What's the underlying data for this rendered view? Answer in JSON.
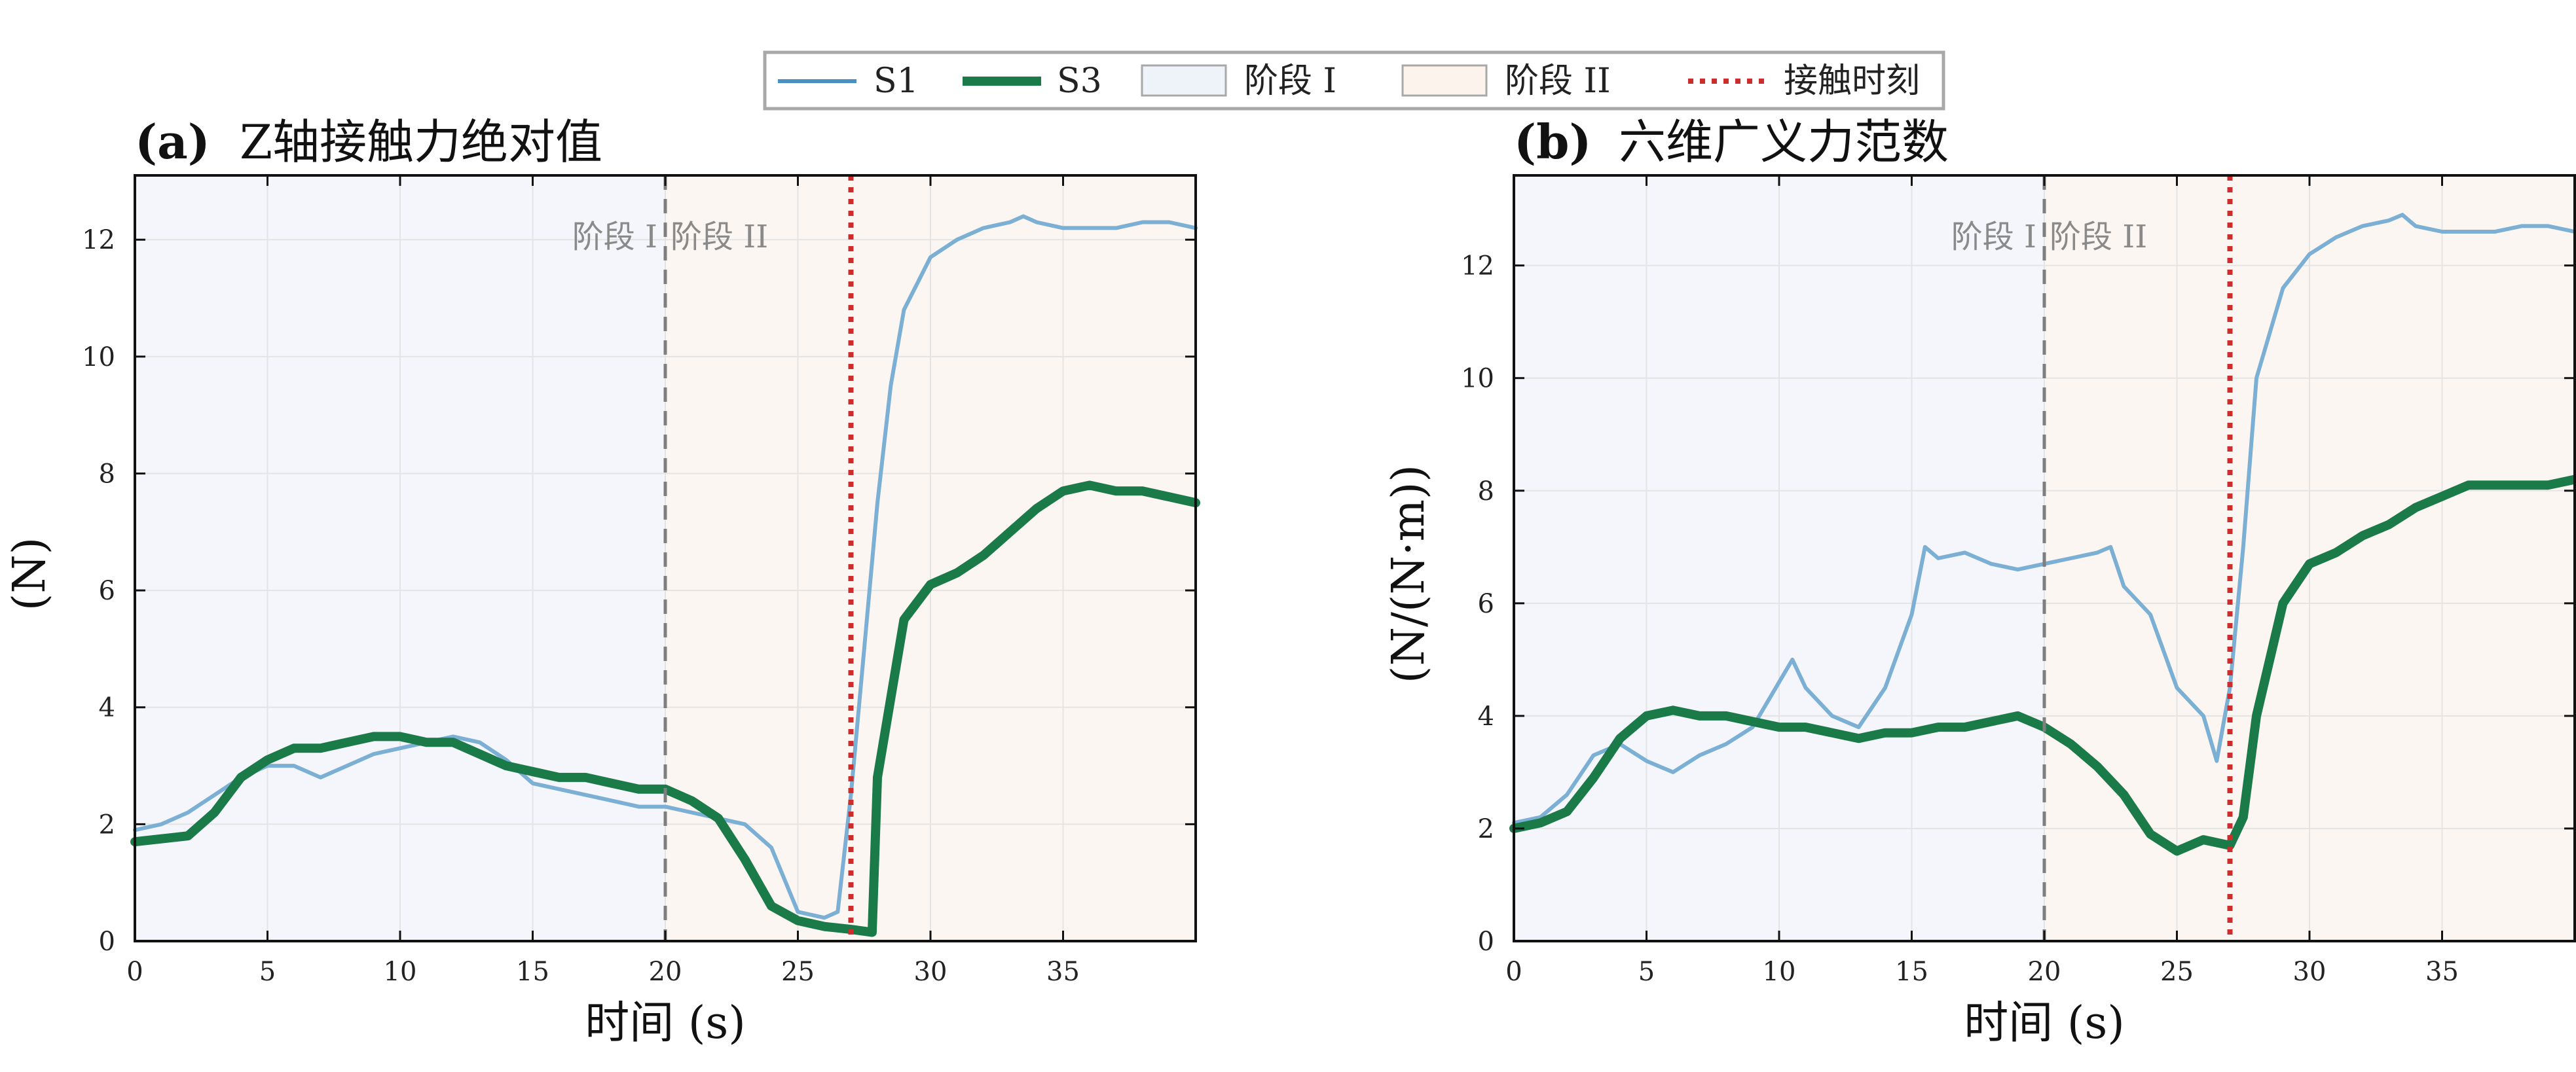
{
  "legend": {
    "items": [
      {
        "label": "S1",
        "kind": "line",
        "color": "#4a90c0"
      },
      {
        "label": "S3",
        "kind": "line-thick",
        "color": "#1a7a48"
      },
      {
        "label": "阶段 I",
        "kind": "patch",
        "color": "#eef2f9"
      },
      {
        "label": "阶段 II",
        "kind": "patch",
        "color": "#fbf3ec"
      },
      {
        "label": "接触时刻",
        "kind": "dotted",
        "color": "#cc2e2e"
      }
    ]
  },
  "stage_labels": {
    "stage1": "阶段 I",
    "stage2": "阶段 II"
  },
  "colors": {
    "s1": "#7bafd4",
    "s3": "#1a7a48",
    "stage1_bg": "#f4f6fb",
    "stage2_bg": "#fcf6f2",
    "contact": "#cc2e2e",
    "stage_line": "#7f7f7f"
  },
  "chart_data": [
    {
      "type": "line",
      "panel": "(a)",
      "title": "Z轴接触力绝对值",
      "xlabel": "时间  (s)",
      "ylabel": "(N)",
      "xlim": [
        0,
        40
      ],
      "ylim": [
        0,
        13.1
      ],
      "xticks": [
        0,
        5,
        10,
        15,
        20,
        25,
        30,
        35
      ],
      "yticks": [
        0,
        2,
        4,
        6,
        8,
        10,
        12
      ],
      "stage_boundary": 20,
      "contact_time": 27,
      "series": [
        {
          "name": "S1",
          "x": [
            0,
            1,
            2,
            3,
            4,
            5,
            6,
            7,
            8,
            9,
            10,
            11,
            12,
            13,
            14,
            15,
            16,
            17,
            18,
            19,
            20,
            21,
            22,
            23,
            24,
            25,
            26,
            26.5,
            27,
            27.5,
            28,
            28.5,
            29,
            30,
            31,
            32,
            33,
            33.5,
            34,
            35,
            36,
            37,
            38,
            39,
            40
          ],
          "y": [
            1.9,
            2.0,
            2.2,
            2.5,
            2.8,
            3.0,
            3.0,
            2.8,
            3.0,
            3.2,
            3.3,
            3.4,
            3.5,
            3.4,
            3.1,
            2.7,
            2.6,
            2.5,
            2.4,
            2.3,
            2.3,
            2.2,
            2.1,
            2.0,
            1.6,
            0.5,
            0.4,
            0.5,
            2.5,
            5.0,
            7.5,
            9.5,
            10.8,
            11.7,
            12.0,
            12.2,
            12.3,
            12.4,
            12.3,
            12.2,
            12.2,
            12.2,
            12.3,
            12.3,
            12.2
          ]
        },
        {
          "name": "S3",
          "x": [
            0,
            1,
            2,
            3,
            4,
            5,
            6,
            7,
            8,
            9,
            10,
            11,
            12,
            13,
            14,
            15,
            16,
            17,
            18,
            19,
            20,
            21,
            22,
            23,
            24,
            25,
            26,
            27,
            27.8,
            28,
            29,
            30,
            31,
            32,
            33,
            34,
            35,
            36,
            37,
            38,
            39,
            40
          ],
          "y": [
            1.7,
            1.75,
            1.8,
            2.2,
            2.8,
            3.1,
            3.3,
            3.3,
            3.4,
            3.5,
            3.5,
            3.4,
            3.4,
            3.2,
            3.0,
            2.9,
            2.8,
            2.8,
            2.7,
            2.6,
            2.6,
            2.4,
            2.1,
            1.4,
            0.6,
            0.35,
            0.25,
            0.2,
            0.15,
            2.8,
            5.5,
            6.1,
            6.3,
            6.6,
            7.0,
            7.4,
            7.7,
            7.8,
            7.7,
            7.7,
            7.6,
            7.5
          ]
        }
      ]
    },
    {
      "type": "line",
      "panel": "(b)",
      "title": "六维广义力范数",
      "xlabel": "时间  (s)",
      "ylabel": "(N/(N·m))",
      "xlim": [
        0,
        40
      ],
      "ylim": [
        0,
        13.6
      ],
      "xticks": [
        0,
        5,
        10,
        15,
        20,
        25,
        30,
        35
      ],
      "yticks": [
        0,
        2,
        4,
        6,
        8,
        10,
        12
      ],
      "stage_boundary": 20,
      "contact_time": 27,
      "series": [
        {
          "name": "S1",
          "x": [
            0,
            1,
            2,
            3,
            4,
            5,
            6,
            7,
            8,
            9,
            10,
            10.5,
            11,
            12,
            13,
            14,
            15,
            15.5,
            16,
            17,
            18,
            19,
            20,
            21,
            22,
            22.5,
            23,
            24,
            25,
            26,
            26.5,
            27,
            27.5,
            28,
            29,
            30,
            31,
            32,
            33,
            33.5,
            34,
            35,
            36,
            37,
            38,
            39,
            40
          ],
          "y": [
            2.1,
            2.2,
            2.6,
            3.3,
            3.5,
            3.2,
            3.0,
            3.3,
            3.5,
            3.8,
            4.6,
            5.0,
            4.5,
            4.0,
            3.8,
            4.5,
            5.8,
            7.0,
            6.8,
            6.9,
            6.7,
            6.6,
            6.7,
            6.8,
            6.9,
            7.0,
            6.3,
            5.8,
            4.5,
            4.0,
            3.2,
            4.5,
            7.0,
            10.0,
            11.6,
            12.2,
            12.5,
            12.7,
            12.8,
            12.9,
            12.7,
            12.6,
            12.6,
            12.6,
            12.7,
            12.7,
            12.6
          ]
        },
        {
          "name": "S3",
          "x": [
            0,
            1,
            2,
            3,
            4,
            5,
            6,
            7,
            8,
            9,
            10,
            11,
            12,
            13,
            14,
            15,
            16,
            17,
            18,
            19,
            20,
            21,
            22,
            23,
            24,
            25,
            26,
            27,
            27.5,
            28,
            29,
            30,
            31,
            32,
            33,
            34,
            35,
            36,
            37,
            38,
            39,
            40
          ],
          "y": [
            2.0,
            2.1,
            2.3,
            2.9,
            3.6,
            4.0,
            4.1,
            4.0,
            4.0,
            3.9,
            3.8,
            3.8,
            3.7,
            3.6,
            3.7,
            3.7,
            3.8,
            3.8,
            3.9,
            4.0,
            3.8,
            3.5,
            3.1,
            2.6,
            1.9,
            1.6,
            1.8,
            1.7,
            2.2,
            4.0,
            6.0,
            6.7,
            6.9,
            7.2,
            7.4,
            7.7,
            7.9,
            8.1,
            8.1,
            8.1,
            8.1,
            8.2
          ]
        }
      ]
    }
  ]
}
